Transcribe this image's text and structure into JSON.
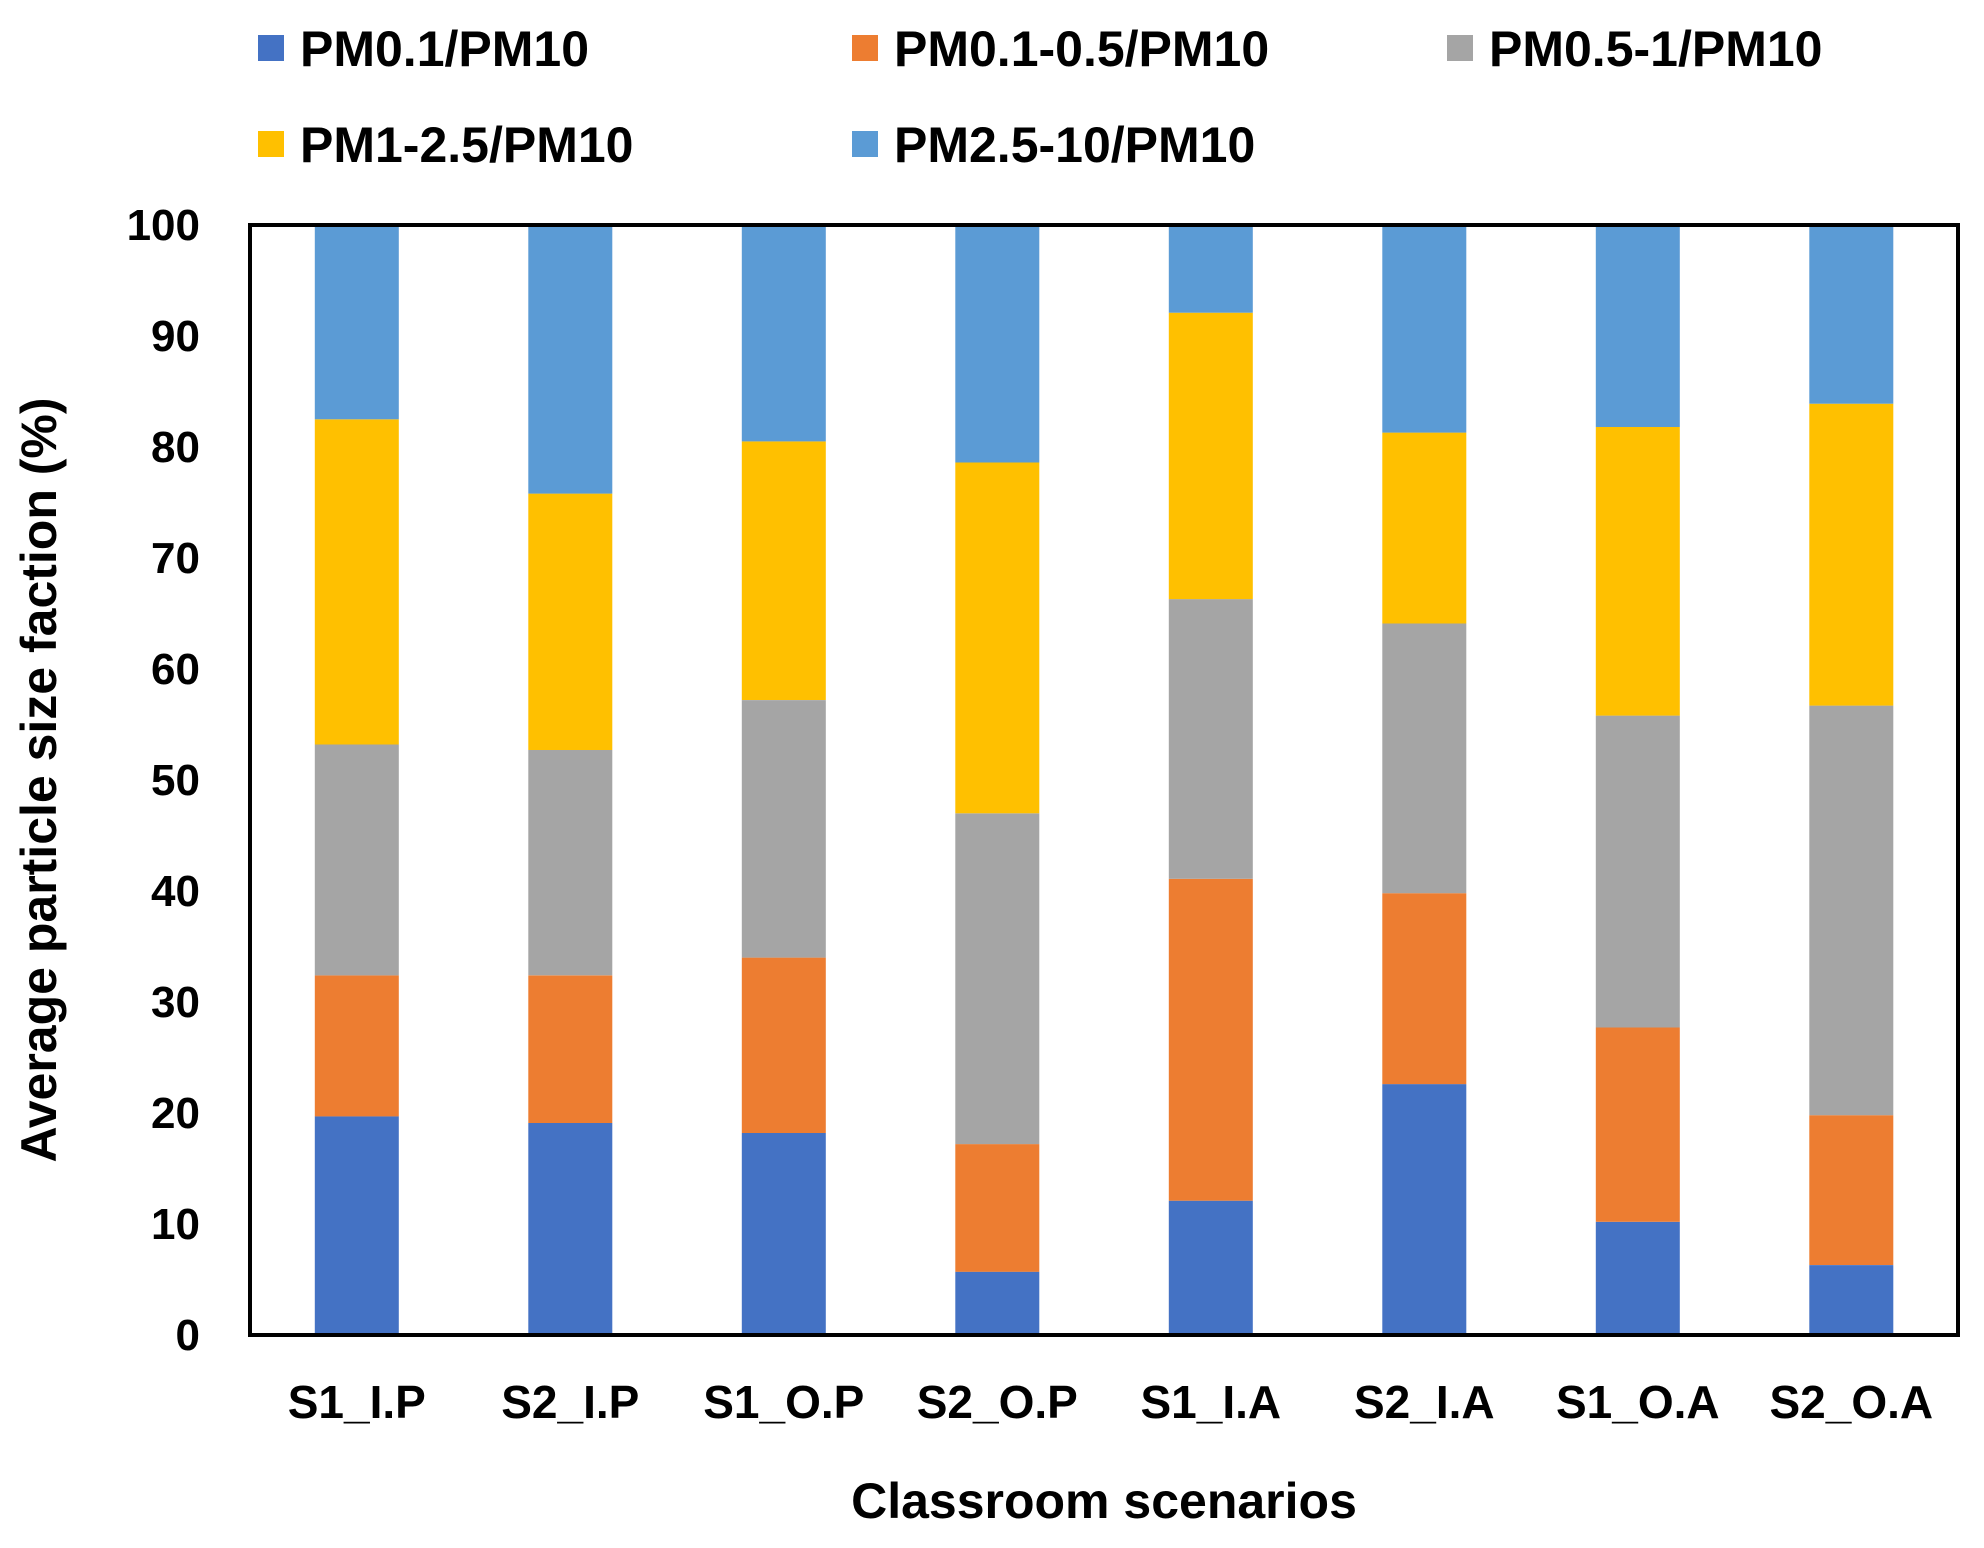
{
  "chart_data": {
    "type": "bar",
    "stacked": true,
    "title": "",
    "xlabel": "Classroom scenarios",
    "ylabel": "Average particle size faction (%)",
    "ylim": [
      0,
      100
    ],
    "yticks": [
      "0",
      "10",
      "20",
      "30",
      "40",
      "50",
      "60",
      "70",
      "80",
      "90",
      "100"
    ],
    "grid": false,
    "legend_position": "top",
    "categories": [
      "S1_I.P",
      "S2_I.P",
      "S1_O.P",
      "S2_O.P",
      "S1_I.A",
      "S2_I.A",
      "S1_O.A",
      "S2_O.A"
    ],
    "series": [
      {
        "name": "PM0.1/PM10",
        "color": "#4472C4",
        "values": [
          19.7,
          19.1,
          18.2,
          5.7,
          12.1,
          22.6,
          10.2,
          6.3
        ]
      },
      {
        "name": "PM0.1-0.5/PM10",
        "color": "#ED7D31",
        "values": [
          12.7,
          13.3,
          15.8,
          11.5,
          29.0,
          17.2,
          17.5,
          13.5
        ]
      },
      {
        "name": "PM0.5-1/PM10",
        "color": "#A5A5A5",
        "values": [
          20.8,
          20.3,
          23.2,
          29.8,
          25.2,
          24.3,
          28.1,
          36.9
        ]
      },
      {
        "name": "PM1-2.5/PM10",
        "color": "#FFC000",
        "values": [
          29.3,
          23.1,
          23.3,
          31.6,
          25.8,
          17.2,
          26.0,
          27.2
        ]
      },
      {
        "name": "PM2.5-10/PM10",
        "color": "#5B9BD5",
        "values": [
          17.5,
          24.2,
          19.5,
          21.4,
          7.9,
          18.7,
          18.2,
          16.1
        ]
      }
    ]
  }
}
